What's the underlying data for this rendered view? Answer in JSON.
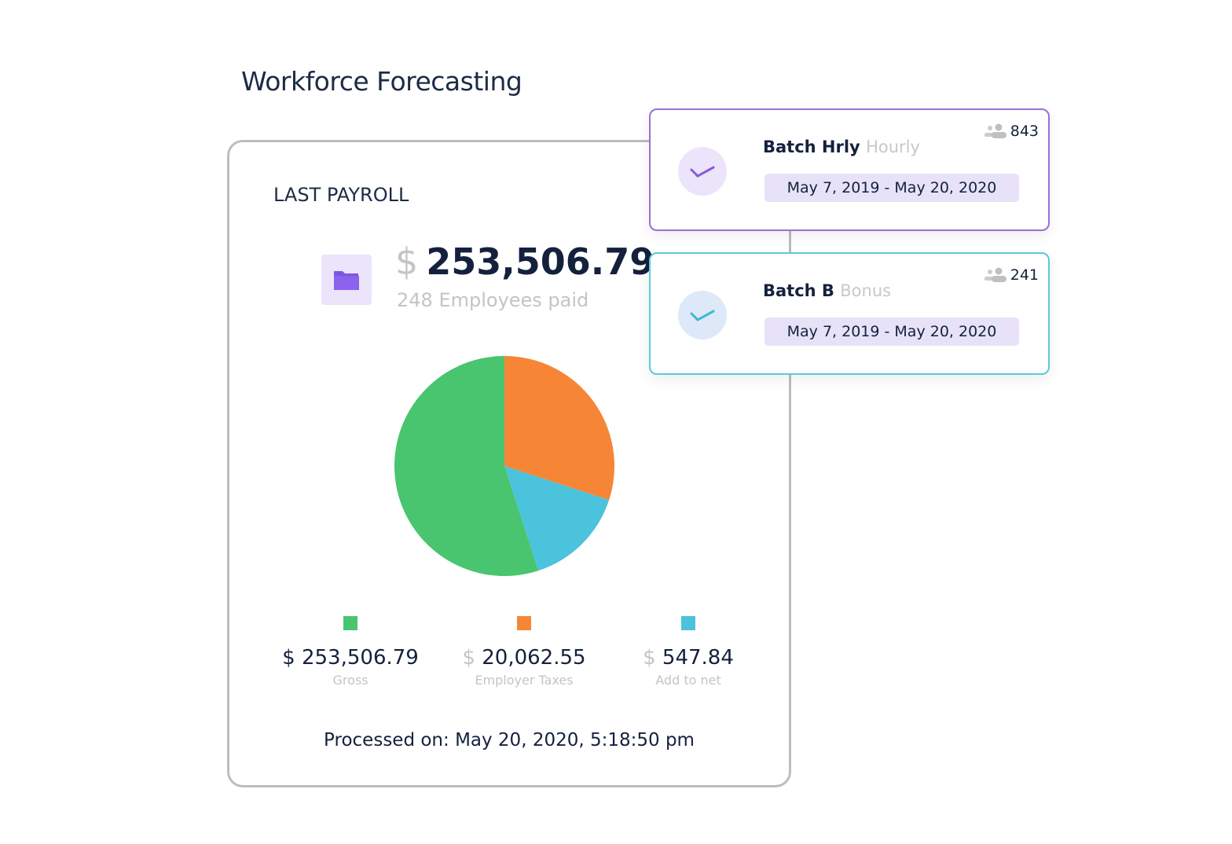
{
  "title": "Workforce Forecasting",
  "payroll": {
    "heading": "LAST PAYROLL",
    "currency": "$",
    "total": "253,506.79",
    "employees": "248 Employees paid",
    "legend": [
      {
        "currency": "$",
        "value": "253,506.79",
        "label": "Gross",
        "color": "#48c56e"
      },
      {
        "currency": "$",
        "value": "20,062.55",
        "label": "Employer Taxes",
        "color": "#f68636"
      },
      {
        "currency": "$",
        "value": "547.84",
        "label": "Add to net",
        "color": "#4bc3dc"
      }
    ],
    "processed": "Processed on: May 20, 2020, 5:18:50 pm"
  },
  "chart_data": {
    "type": "pie",
    "slices": [
      {
        "label": "Employer Taxes",
        "percent": 30,
        "color": "#f68636"
      },
      {
        "label": "Add to net",
        "percent": 15,
        "color": "#4bc3dc"
      },
      {
        "label": "Gross",
        "percent": 55,
        "color": "#48c56e"
      }
    ]
  },
  "batches": [
    {
      "name": "Batch Hrly",
      "type": "Hourly",
      "dates": "May 7, 2019 - May 20, 2020",
      "count": "843",
      "accent": "#9b6fd8",
      "check_bg": "#ebe4fb",
      "check_color": "#8a5ad6",
      "icon": "people-icon"
    },
    {
      "name": "Batch B",
      "type": "Bonus",
      "dates": "May 7, 2019 - May 20, 2020",
      "count": "241",
      "accent": "#5ccad6",
      "check_bg": "#dde9f9",
      "check_color": "#3fb8d0",
      "icon": "people-icon"
    }
  ]
}
